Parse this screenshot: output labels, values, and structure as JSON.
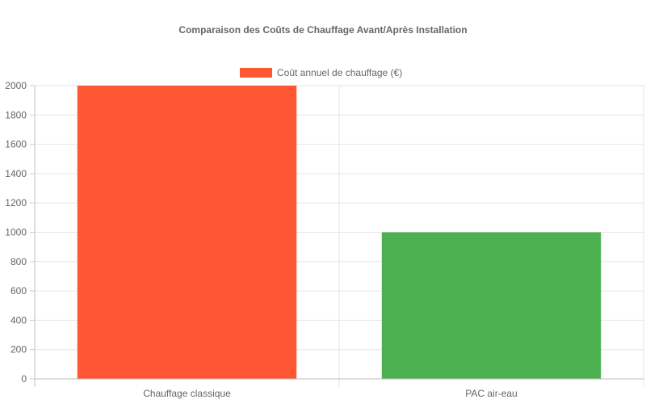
{
  "chart_data": {
    "type": "bar",
    "title": "Comparaison des Coûts de Chauffage Avant/Après Installation",
    "categories": [
      "Chauffage classique",
      "PAC air-eau"
    ],
    "series": [
      {
        "name": "Coût annuel de chauffage (€)",
        "values": [
          2000,
          1000
        ],
        "colors": [
          "#FF5733",
          "#4CAF50"
        ],
        "legend_color": "#FF5733"
      }
    ],
    "ylim": [
      0,
      2000
    ],
    "yticks": [
      "0",
      "200",
      "400",
      "600",
      "800",
      "1000",
      "1200",
      "1400",
      "1600",
      "1800",
      "2000"
    ],
    "grid": true,
    "legend_position": "top-center"
  }
}
